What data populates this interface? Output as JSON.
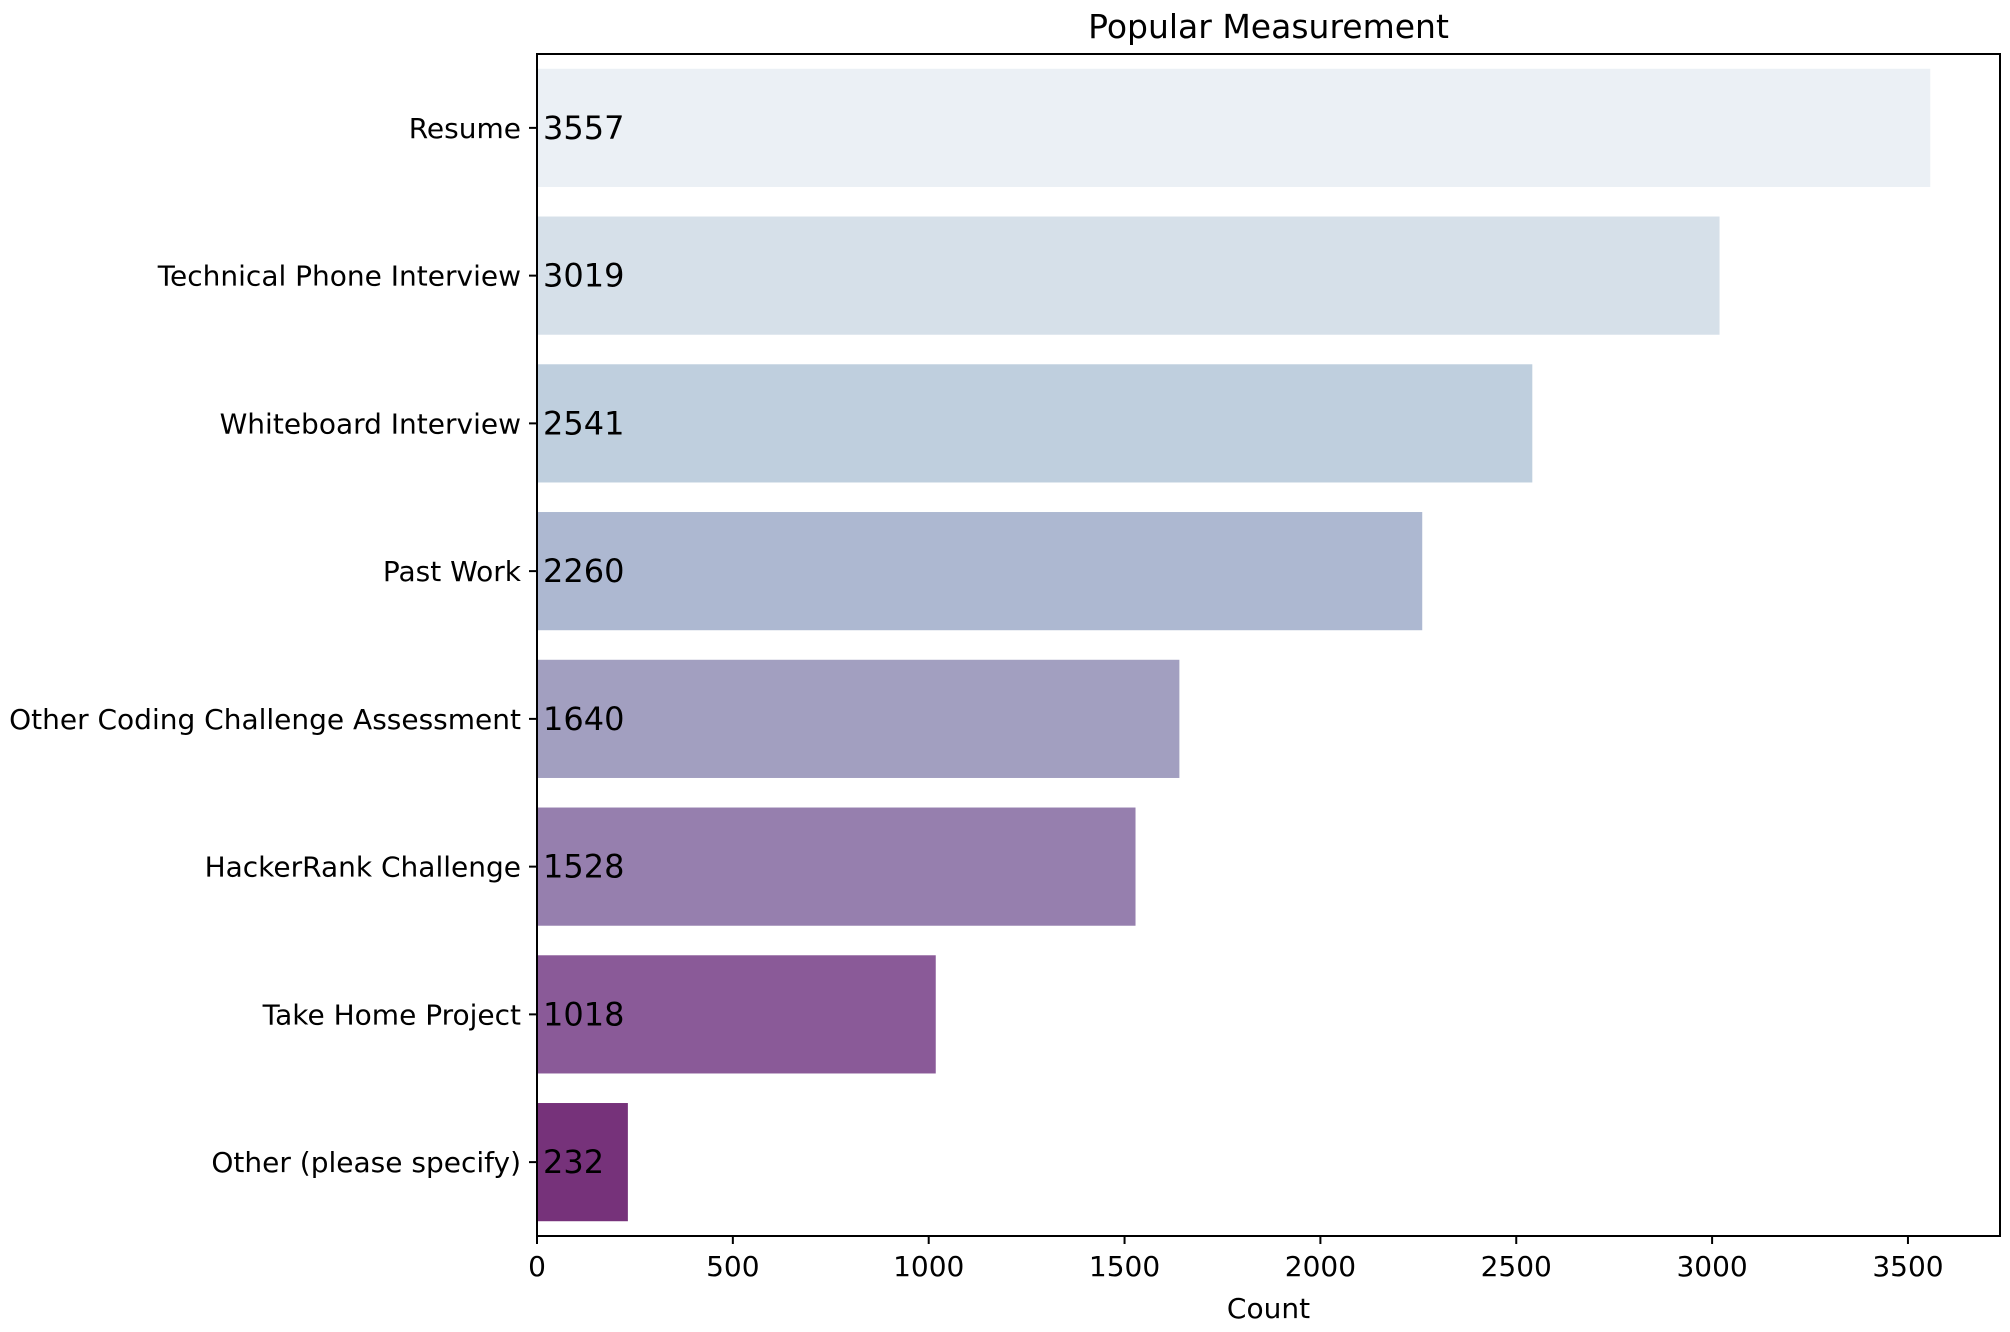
{
  "chart_data": {
    "type": "bar",
    "orientation": "horizontal",
    "title": "Popular Measurement",
    "xlabel": "Count",
    "ylabel": "",
    "xlim": [
      0,
      3735
    ],
    "x_ticks": [
      0,
      500,
      1000,
      1500,
      2000,
      2500,
      3000,
      3500
    ],
    "categories": [
      "Resume",
      "Technical Phone Interview",
      "Whiteboard Interview",
      "Past Work",
      "Other Coding Challenge Assessment",
      "HackerRank Challenge",
      "Take Home Project",
      "Other (please specify)"
    ],
    "values": [
      3557,
      3019,
      2541,
      2260,
      1640,
      1528,
      1018,
      232
    ],
    "bar_colors": [
      "#ebf0f5",
      "#d6e0e9",
      "#bfcfde",
      "#adb8d1",
      "#a29fc0",
      "#967fae",
      "#8a5a98",
      "#76327a"
    ],
    "grid": false,
    "legend": "none"
  }
}
